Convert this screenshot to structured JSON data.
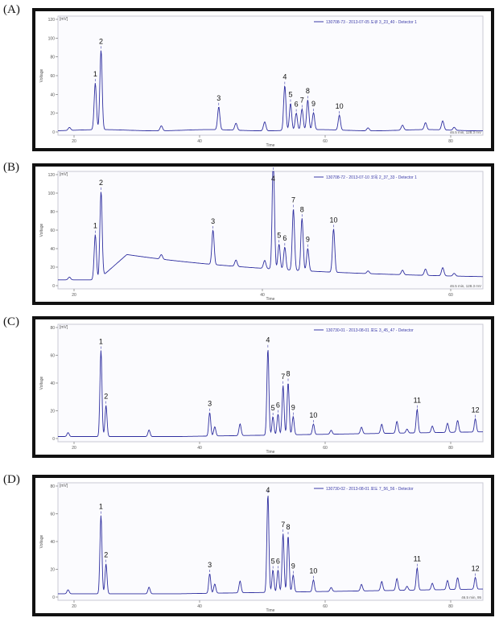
{
  "panels": [
    {
      "label": "(A)"
    },
    {
      "label": "(B)"
    },
    {
      "label": "(C)"
    },
    {
      "label": "(D)"
    }
  ],
  "chart_data": [
    {
      "type": "line",
      "panel": "(A)",
      "unit_label": "[mV]",
      "ylabel": "Voltage",
      "xlabel": "Time",
      "legend": "130708-73 - 2013-07-05 도큐 3_23_40 - Detector 1",
      "status": "46.5 min, 128.3 mV",
      "yticks": [
        "120",
        "100",
        "80",
        "60",
        "40",
        "20",
        "0"
      ],
      "xticks": [
        "20",
        "40",
        "60",
        "80"
      ],
      "ylim": [
        0,
        120
      ],
      "xlim": [
        16,
        90
      ],
      "baseline": 5,
      "peaks": [
        {
          "label": "1",
          "x": 22.5,
          "y": 52
        },
        {
          "label": "2",
          "x": 23.5,
          "y": 85
        },
        {
          "label": "3",
          "x": 44.0,
          "y": 28
        },
        {
          "label": "4",
          "x": 55.5,
          "y": 50
        },
        {
          "label": "5",
          "x": 56.5,
          "y": 32
        },
        {
          "label": "6",
          "x": 57.5,
          "y": 22
        },
        {
          "label": "7",
          "x": 58.5,
          "y": 26
        },
        {
          "label": "8",
          "x": 59.5,
          "y": 35
        },
        {
          "label": "9",
          "x": 60.5,
          "y": 22
        },
        {
          "label": "10",
          "x": 65.0,
          "y": 20
        }
      ]
    },
    {
      "type": "line",
      "panel": "(B)",
      "unit_label": "[mV]",
      "ylabel": "Voltage",
      "xlabel": "Time",
      "legend": "130708-72 - 2013-07-10 코옥 2_37_33 - Detector 1",
      "status": "46.5 min, 128.3 mV",
      "yticks": [
        "120",
        "100",
        "80",
        "60",
        "40",
        "20",
        "0"
      ],
      "xticks": [
        "20",
        "40",
        "60"
      ],
      "ylim": [
        0,
        130
      ],
      "xlim": [
        16,
        90
      ],
      "baseline": 10,
      "peaks": [
        {
          "label": "1",
          "x": 22.5,
          "y": 60
        },
        {
          "label": "2",
          "x": 23.5,
          "y": 105
        },
        {
          "label": "3",
          "x": 43.0,
          "y": 48
        },
        {
          "label": "4",
          "x": 53.5,
          "y": 130
        },
        {
          "label": "5",
          "x": 54.5,
          "y": 38
        },
        {
          "label": "6",
          "x": 55.5,
          "y": 35
        },
        {
          "label": "7",
          "x": 57.0,
          "y": 78
        },
        {
          "label": "8",
          "x": 58.5,
          "y": 68
        },
        {
          "label": "9",
          "x": 59.5,
          "y": 35
        },
        {
          "label": "10",
          "x": 64.0,
          "y": 58
        }
      ]
    },
    {
      "type": "line",
      "panel": "(C)",
      "unit_label": "[mV]",
      "ylabel": "Voltage",
      "xlabel": "Time",
      "legend": "130730-01 - 2013-08-01 포도 3_45_47 - Detector",
      "status": "",
      "yticks": [
        "80",
        "60",
        "40",
        "20",
        "0"
      ],
      "xticks": [
        "20",
        "40",
        "60",
        "80"
      ],
      "ylim": [
        0,
        90
      ],
      "xlim": [
        16,
        100
      ],
      "baseline": 4,
      "peaks": [
        {
          "label": "1",
          "x": 24.5,
          "y": 70
        },
        {
          "label": "2",
          "x": 25.5,
          "y": 28
        },
        {
          "label": "3",
          "x": 46.0,
          "y": 22
        },
        {
          "label": "4",
          "x": 57.5,
          "y": 70
        },
        {
          "label": "5",
          "x": 58.5,
          "y": 18
        },
        {
          "label": "6",
          "x": 59.5,
          "y": 20
        },
        {
          "label": "7",
          "x": 60.5,
          "y": 42
        },
        {
          "label": "8",
          "x": 61.5,
          "y": 44
        },
        {
          "label": "9",
          "x": 62.5,
          "y": 18
        },
        {
          "label": "10",
          "x": 66.5,
          "y": 12
        },
        {
          "label": "11",
          "x": 87.0,
          "y": 22
        },
        {
          "label": "12",
          "x": 98.5,
          "y": 14
        }
      ]
    },
    {
      "type": "line",
      "panel": "(D)",
      "unit_label": "[mV]",
      "ylabel": "Voltage",
      "xlabel": "Time",
      "legend": "130730-02 - 2013-08-01 포도 7_56_56 - Detector",
      "status": "46.5 min, 95",
      "yticks": [
        "80",
        "60",
        "40",
        "20",
        "0"
      ],
      "xticks": [
        "20",
        "40",
        "60",
        "80"
      ],
      "ylim": [
        0,
        90
      ],
      "xlim": [
        16,
        100
      ],
      "baseline": 5,
      "peaks": [
        {
          "label": "1",
          "x": 24.5,
          "y": 65
        },
        {
          "label": "2",
          "x": 25.5,
          "y": 28
        },
        {
          "label": "3",
          "x": 46.0,
          "y": 20
        },
        {
          "label": "4",
          "x": 57.5,
          "y": 80
        },
        {
          "label": "5",
          "x": 58.5,
          "y": 22
        },
        {
          "label": "6",
          "x": 59.5,
          "y": 22
        },
        {
          "label": "7",
          "x": 60.5,
          "y": 50
        },
        {
          "label": "8",
          "x": 61.5,
          "y": 48
        },
        {
          "label": "9",
          "x": 62.5,
          "y": 18
        },
        {
          "label": "10",
          "x": 66.5,
          "y": 14
        },
        {
          "label": "11",
          "x": 87.0,
          "y": 22
        },
        {
          "label": "12",
          "x": 98.5,
          "y": 14
        }
      ]
    }
  ]
}
